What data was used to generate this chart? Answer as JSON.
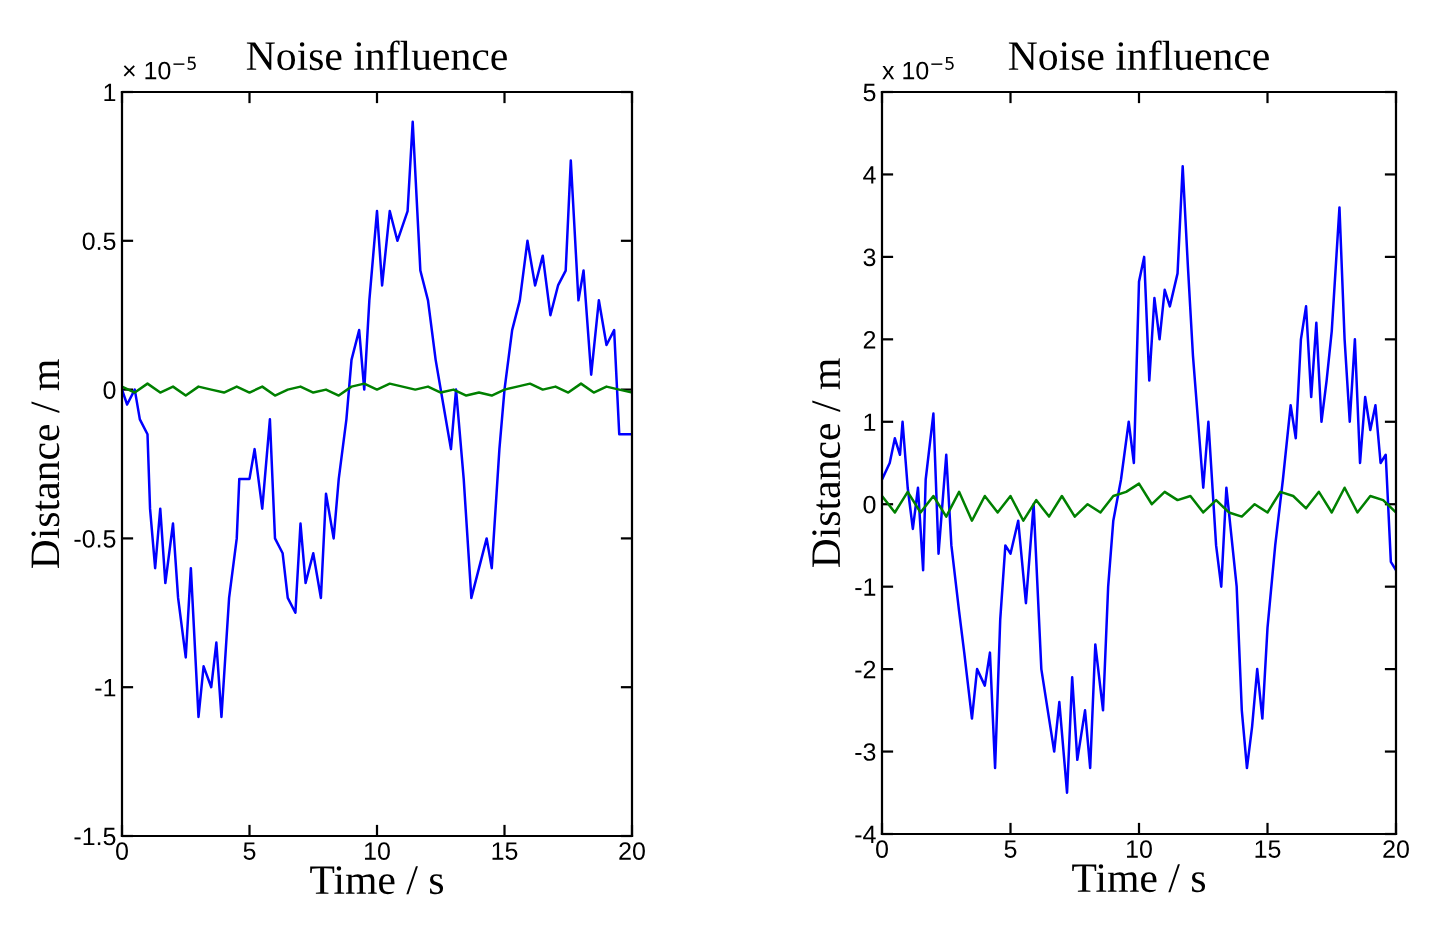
{
  "chart_data": [
    {
      "type": "line",
      "title": "Noise influence",
      "xlabel": "Time / s",
      "ylabel": "Distance / m",
      "annotations": [
        "× 10$^{−5}$"
      ],
      "xlim": [
        0,
        20
      ],
      "xticks": [
        0,
        5,
        10,
        15,
        20
      ],
      "ylim": [
        -1.5,
        1
      ],
      "yticks": [
        -1.5,
        -1,
        -0.5,
        0,
        0.5,
        1
      ],
      "series": [
        {
          "color": "#0000ff",
          "x": [
            0,
            0.2,
            0.5,
            0.7,
            1.0,
            1.1,
            1.3,
            1.5,
            1.7,
            2.0,
            2.2,
            2.5,
            2.7,
            3.0,
            3.2,
            3.5,
            3.7,
            3.9,
            4.2,
            4.5,
            4.6,
            5.0,
            5.2,
            5.5,
            5.8,
            6.0,
            6.3,
            6.5,
            6.8,
            7.0,
            7.2,
            7.5,
            7.8,
            8.0,
            8.3,
            8.5,
            8.8,
            9.0,
            9.3,
            9.5,
            9.7,
            10.0,
            10.2,
            10.5,
            10.8,
            11.2,
            11.4,
            11.7,
            12.0,
            12.3,
            12.6,
            12.9,
            13.1,
            13.4,
            13.7,
            14.0,
            14.3,
            14.5,
            14.8,
            15.0,
            15.3,
            15.6,
            15.9,
            16.2,
            16.5,
            16.8,
            17.1,
            17.4,
            17.6,
            17.9,
            18.1,
            18.4,
            18.7,
            19.0,
            19.3,
            19.5,
            19.8,
            20.0
          ],
          "values": [
            0.0,
            -0.05,
            0.0,
            -0.1,
            -0.15,
            -0.4,
            -0.6,
            -0.4,
            -0.65,
            -0.45,
            -0.7,
            -0.9,
            -0.6,
            -1.1,
            -0.93,
            -1.0,
            -0.85,
            -1.1,
            -0.7,
            -0.5,
            -0.3,
            -0.3,
            -0.2,
            -0.4,
            -0.1,
            -0.5,
            -0.55,
            -0.7,
            -0.75,
            -0.45,
            -0.65,
            -0.55,
            -0.7,
            -0.35,
            -0.5,
            -0.3,
            -0.1,
            0.1,
            0.2,
            0.0,
            0.3,
            0.6,
            0.35,
            0.6,
            0.5,
            0.6,
            0.9,
            0.4,
            0.3,
            0.1,
            -0.05,
            -0.2,
            0.0,
            -0.3,
            -0.7,
            -0.6,
            -0.5,
            -0.6,
            -0.2,
            0.0,
            0.2,
            0.3,
            0.5,
            0.35,
            0.45,
            0.25,
            0.35,
            0.4,
            0.77,
            0.3,
            0.4,
            0.05,
            0.3,
            0.15,
            0.2,
            -0.15,
            -0.15,
            -0.15
          ]
        },
        {
          "color": "#008000",
          "x": [
            0,
            0.5,
            1,
            1.5,
            2,
            2.5,
            3,
            3.5,
            4,
            4.5,
            5,
            5.5,
            6,
            6.5,
            7,
            7.5,
            8,
            8.5,
            9,
            9.5,
            10,
            10.5,
            11,
            11.5,
            12,
            12.5,
            13,
            13.5,
            14,
            14.5,
            15,
            15.5,
            16,
            16.5,
            17,
            17.5,
            18,
            18.5,
            19,
            19.5,
            20
          ],
          "values": [
            0.01,
            -0.01,
            0.02,
            -0.01,
            0.01,
            -0.02,
            0.01,
            0.0,
            -0.01,
            0.01,
            -0.01,
            0.01,
            -0.02,
            0.0,
            0.01,
            -0.01,
            0.0,
            -0.02,
            0.01,
            0.02,
            0.0,
            0.02,
            0.01,
            0.0,
            0.01,
            -0.01,
            0.0,
            -0.02,
            -0.01,
            -0.02,
            0.0,
            0.01,
            0.02,
            0.0,
            0.01,
            -0.01,
            0.02,
            -0.01,
            0.01,
            0.0,
            -0.01
          ]
        }
      ]
    },
    {
      "type": "line",
      "title": "Noise influence",
      "xlabel": "Time / s",
      "ylabel": "Distance / m",
      "annotations": [
        "x 10$^{−5}$"
      ],
      "xlim": [
        0,
        20
      ],
      "xticks": [
        0,
        5,
        10,
        15,
        20
      ],
      "ylim": [
        -4,
        5
      ],
      "yticks": [
        -4,
        -3,
        -2,
        -1,
        0,
        1,
        2,
        3,
        4,
        5
      ],
      "series": [
        {
          "color": "#0000ff",
          "x": [
            0,
            0.3,
            0.5,
            0.7,
            0.8,
            1.0,
            1.2,
            1.4,
            1.6,
            1.7,
            2.0,
            2.2,
            2.5,
            2.7,
            3.0,
            3.2,
            3.5,
            3.7,
            4.0,
            4.2,
            4.4,
            4.6,
            4.8,
            5.0,
            5.3,
            5.6,
            5.9,
            6.2,
            6.5,
            6.7,
            6.9,
            7.2,
            7.4,
            7.6,
            7.9,
            8.1,
            8.3,
            8.6,
            8.8,
            9.0,
            9.3,
            9.6,
            9.8,
            10.0,
            10.2,
            10.4,
            10.6,
            10.8,
            11.0,
            11.2,
            11.5,
            11.7,
            11.9,
            12.1,
            12.3,
            12.5,
            12.7,
            13.0,
            13.2,
            13.4,
            13.6,
            13.8,
            14.0,
            14.2,
            14.4,
            14.6,
            14.8,
            15.0,
            15.3,
            15.6,
            15.9,
            16.1,
            16.3,
            16.5,
            16.7,
            16.9,
            17.1,
            17.3,
            17.5,
            17.8,
            18.0,
            18.2,
            18.4,
            18.6,
            18.8,
            19.0,
            19.2,
            19.4,
            19.6,
            19.8,
            20.0
          ],
          "values": [
            0.3,
            0.5,
            0.8,
            0.6,
            1.0,
            0.2,
            -0.3,
            0.2,
            -0.8,
            0.3,
            1.1,
            -0.6,
            0.6,
            -0.5,
            -1.3,
            -1.8,
            -2.6,
            -2.0,
            -2.2,
            -1.8,
            -3.2,
            -1.4,
            -0.5,
            -0.6,
            -0.2,
            -1.2,
            0.0,
            -2.0,
            -2.6,
            -3.0,
            -2.4,
            -3.5,
            -2.1,
            -3.1,
            -2.5,
            -3.2,
            -1.7,
            -2.5,
            -1.0,
            -0.2,
            0.3,
            1.0,
            0.5,
            2.7,
            3.0,
            1.5,
            2.5,
            2.0,
            2.6,
            2.4,
            2.8,
            4.1,
            2.9,
            1.8,
            1.0,
            0.2,
            1.0,
            -0.5,
            -1.0,
            0.2,
            -0.4,
            -1.0,
            -2.5,
            -3.2,
            -2.7,
            -2.0,
            -2.6,
            -1.5,
            -0.5,
            0.3,
            1.2,
            0.8,
            2.0,
            2.4,
            1.3,
            2.2,
            1.0,
            1.5,
            2.1,
            3.6,
            2.0,
            1.0,
            2.0,
            0.5,
            1.3,
            0.9,
            1.2,
            0.5,
            0.6,
            -0.7,
            -0.8
          ]
        },
        {
          "color": "#008000",
          "x": [
            0,
            0.5,
            1,
            1.5,
            2,
            2.5,
            3,
            3.5,
            4,
            4.5,
            5,
            5.5,
            6,
            6.5,
            7,
            7.5,
            8,
            8.5,
            9,
            9.5,
            10,
            10.5,
            11,
            11.5,
            12,
            12.5,
            13,
            13.5,
            14,
            14.5,
            15,
            15.5,
            16,
            16.5,
            17,
            17.5,
            18,
            18.5,
            19,
            19.5,
            20
          ],
          "values": [
            0.1,
            -0.1,
            0.15,
            -0.1,
            0.1,
            -0.15,
            0.15,
            -0.2,
            0.1,
            -0.1,
            0.1,
            -0.2,
            0.05,
            -0.15,
            0.1,
            -0.15,
            0.0,
            -0.1,
            0.1,
            0.15,
            0.25,
            0.0,
            0.15,
            0.05,
            0.1,
            -0.1,
            0.05,
            -0.1,
            -0.15,
            0.0,
            -0.1,
            0.15,
            0.1,
            -0.05,
            0.15,
            -0.1,
            0.2,
            -0.1,
            0.1,
            0.05,
            -0.1
          ]
        }
      ]
    }
  ]
}
